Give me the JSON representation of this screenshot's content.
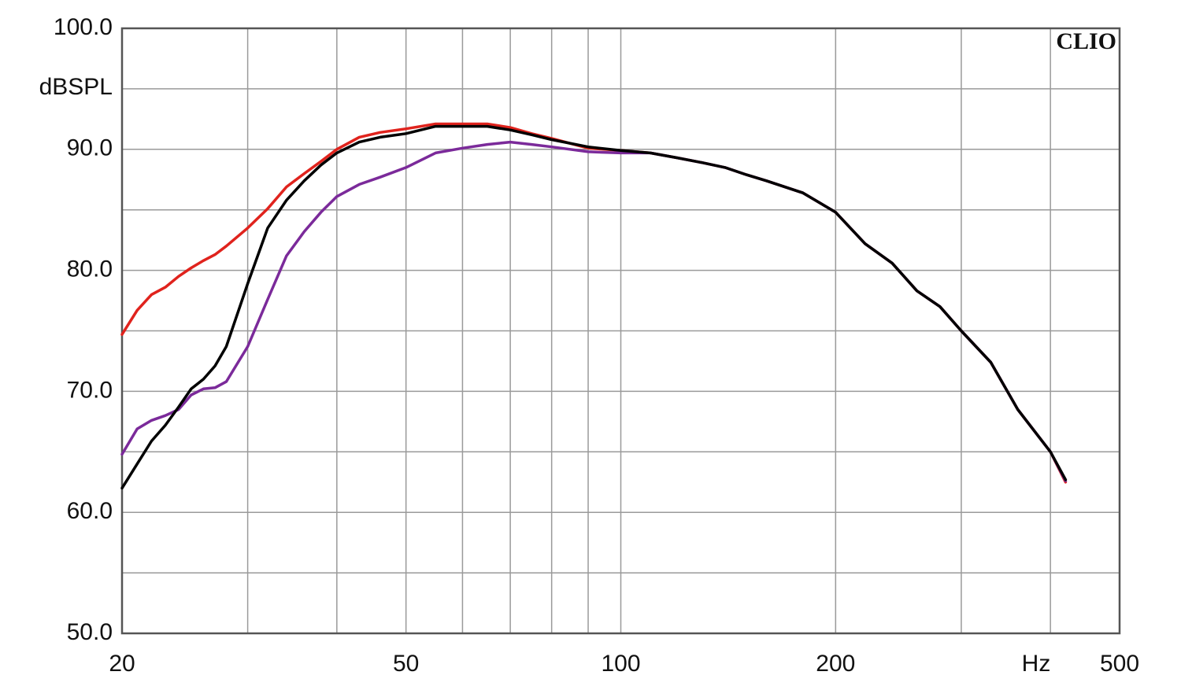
{
  "chart_data": {
    "type": "line",
    "annotation": "CLIO",
    "ylabel": "dBSPL",
    "xlabel": "Hz",
    "log_x": true,
    "grid": true,
    "xlim": [
      20,
      500
    ],
    "ylim": [
      50,
      100
    ],
    "xticks": [
      20,
      50,
      100,
      200,
      500
    ],
    "x_minor_ticks": [
      30,
      40,
      60,
      70,
      80,
      90,
      300,
      400
    ],
    "yticks": [
      {
        "value": 50,
        "label": "50.0"
      },
      {
        "value": 60,
        "label": "60.0"
      },
      {
        "value": 70,
        "label": "70.0"
      },
      {
        "value": 80,
        "label": "80.0"
      },
      {
        "value": 90,
        "label": "90.0"
      },
      {
        "value": 100,
        "label": "100.0"
      }
    ],
    "y_minor_ticks": [
      55,
      65,
      75,
      85,
      95
    ],
    "x": [
      20,
      21,
      22,
      23,
      24,
      25,
      26,
      27,
      28,
      30,
      32,
      34,
      36,
      38,
      40,
      43,
      46,
      50,
      55,
      60,
      65,
      70,
      75,
      80,
      90,
      100,
      110,
      120,
      130,
      140,
      150,
      160,
      180,
      200,
      220,
      240,
      260,
      280,
      300,
      330,
      360,
      400,
      420
    ],
    "series": [
      {
        "color": "#e0231d",
        "values": [
          74.7,
          76.7,
          78.0,
          78.6,
          79.5,
          80.2,
          80.8,
          81.3,
          82.0,
          83.5,
          85.1,
          86.9,
          88.0,
          89.0,
          90.0,
          91.0,
          91.4,
          91.7,
          92.1,
          92.1,
          92.1,
          91.8,
          91.3,
          90.9,
          90.1,
          89.9,
          89.7,
          89.3,
          88.9,
          88.5,
          87.9,
          87.4,
          86.4,
          84.8,
          82.2,
          80.6,
          78.3,
          77.0,
          75.0,
          72.4,
          68.5,
          65.0,
          62.5
        ]
      },
      {
        "color": "#7b2a9a",
        "values": [
          64.8,
          66.9,
          67.6,
          68.0,
          68.5,
          69.7,
          70.2,
          70.3,
          70.8,
          73.7,
          77.6,
          81.2,
          83.2,
          84.8,
          86.1,
          87.1,
          87.7,
          88.5,
          89.7,
          90.1,
          90.4,
          90.6,
          90.4,
          90.2,
          89.8,
          89.7,
          89.7,
          89.3,
          88.9,
          88.5,
          87.9,
          87.4,
          86.4,
          84.8,
          82.2,
          80.6,
          78.3,
          77.0,
          75.0,
          72.4,
          68.5,
          65.0,
          62.6
        ]
      },
      {
        "color": "#000000",
        "values": [
          62.0,
          64.0,
          65.9,
          67.2,
          68.7,
          70.2,
          71.0,
          72.1,
          73.7,
          78.9,
          83.5,
          85.8,
          87.4,
          88.7,
          89.7,
          90.6,
          91.0,
          91.3,
          91.9,
          91.9,
          91.9,
          91.6,
          91.2,
          90.8,
          90.2,
          89.9,
          89.7,
          89.3,
          88.9,
          88.5,
          87.9,
          87.4,
          86.4,
          84.8,
          82.2,
          80.6,
          78.3,
          77.0,
          75.0,
          72.4,
          68.5,
          65.0,
          62.7
        ]
      }
    ]
  }
}
